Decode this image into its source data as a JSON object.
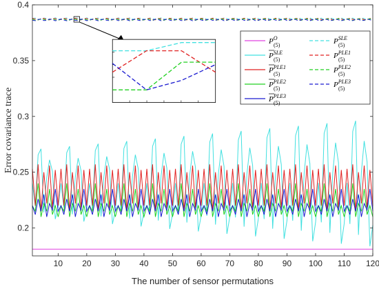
{
  "chart_data": {
    "type": "line",
    "xlabel": "The number of sensor permutations",
    "ylabel": "Error covariance trace",
    "xlim": [
      1,
      120
    ],
    "ylim": [
      0.175,
      0.4
    ],
    "x_ticks": [
      10,
      20,
      30,
      40,
      50,
      60,
      70,
      80,
      90,
      100,
      110,
      120
    ],
    "y_ticks": [
      0.2,
      0.25,
      0.3,
      0.35,
      0.4
    ],
    "x_tick_labels": [
      "10",
      "20",
      "30",
      "40",
      "50",
      "60",
      "70",
      "80",
      "90",
      "100",
      "110",
      "120"
    ],
    "y_tick_labels": [
      "0.2",
      "0.25",
      "0.3",
      "0.35",
      "0.4"
    ],
    "grid": false,
    "legend_position": "top-right",
    "inset_zoom": {
      "from_x_range": [
        15,
        18
      ],
      "near_y": 0.387,
      "description_of_lines": "dashed series shown magnified in inset"
    },
    "series": [
      {
        "key": "PO",
        "name_main": "P",
        "name_sup": "O",
        "name_sub": "(5)",
        "bar": false,
        "color": "#e040e0",
        "dash": "solid",
        "constant": 0.181
      },
      {
        "key": "PbarSLE",
        "name_main": "P",
        "name_sup": "SLE",
        "name_sub": "(5)",
        "bar": true,
        "color": "#40e0e0",
        "dash": "solid",
        "pattern": [
          0.24,
          0.22,
          0.265,
          0.27,
          0.215,
          0.245,
          0.26,
          0.25,
          0.21,
          0.22
        ],
        "amp_growth": true
      },
      {
        "key": "PbarPLE1",
        "name_main": "P",
        "name_sup": "PLE1",
        "name_sub": "(5)",
        "bar": true,
        "color": "#e02020",
        "dash": "solid",
        "pattern": [
          0.253,
          0.22,
          0.257,
          0.215,
          0.25,
          0.222,
          0.256,
          0.218,
          0.252,
          0.22
        ],
        "amp_growth": false
      },
      {
        "key": "PbarPLE2",
        "name_main": "P",
        "name_sup": "PLE2",
        "name_sub": "(5)",
        "bar": true,
        "color": "#20d020",
        "dash": "solid",
        "pattern": [
          0.22,
          0.215,
          0.24,
          0.21,
          0.222,
          0.215,
          0.235,
          0.212,
          0.22,
          0.21
        ],
        "amp_growth": false
      },
      {
        "key": "PbarPLE3",
        "name_main": "P",
        "name_sup": "PLE3",
        "name_sub": "(5)",
        "bar": true,
        "color": "#1a1ad0",
        "dash": "solid",
        "pattern": [
          0.22,
          0.212,
          0.226,
          0.215,
          0.23,
          0.21,
          0.222,
          0.216,
          0.235,
          0.215
        ],
        "amp_growth": false
      },
      {
        "key": "PSLE",
        "name_main": "P",
        "name_sup": "SLE",
        "name_sub": "(5)",
        "bar": false,
        "color": "#40e0e0",
        "dash": "dashed",
        "constant": 0.3875
      },
      {
        "key": "PPLE1",
        "name_main": "P",
        "name_sup": "PLE1",
        "name_sub": "(5)",
        "bar": false,
        "color": "#e02020",
        "dash": "dashed",
        "constant": 0.3872
      },
      {
        "key": "PPLE2",
        "name_main": "P",
        "name_sup": "PLE2",
        "name_sub": "(5)",
        "bar": false,
        "color": "#20d020",
        "dash": "dashed",
        "constant": 0.3868
      },
      {
        "key": "PPLE3",
        "name_main": "P",
        "name_sup": "PLE3",
        "name_sub": "(5)",
        "bar": false,
        "color": "#1a1ad0",
        "dash": "dashed",
        "constant": 0.3865
      }
    ]
  }
}
